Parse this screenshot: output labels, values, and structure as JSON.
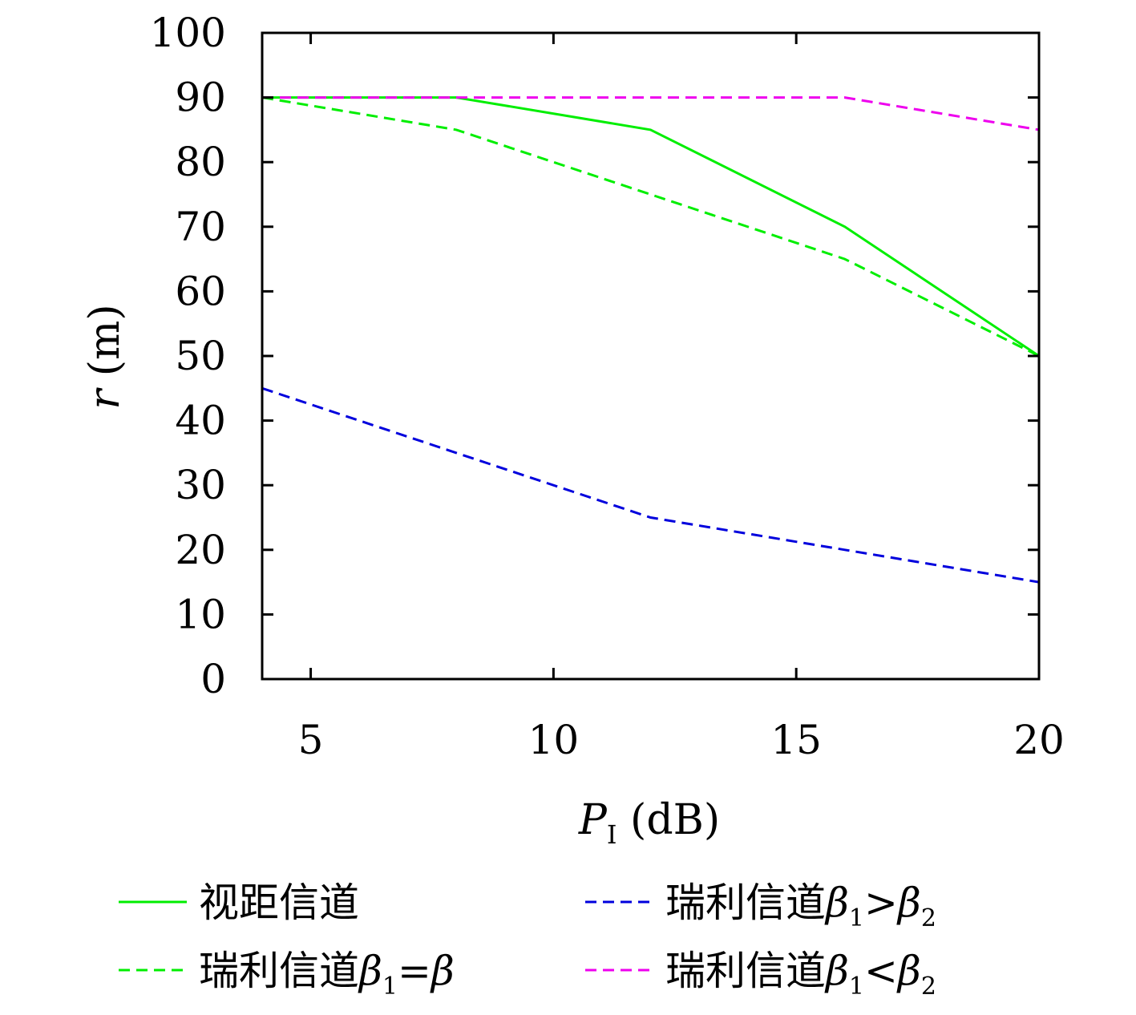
{
  "chart_data": {
    "type": "line",
    "title": "",
    "xlabel": {
      "main": "P",
      "sub": "I",
      "unit": "(dB)"
    },
    "ylabel": {
      "main": "r",
      "unit": "(m)"
    },
    "xlim": [
      4,
      20
    ],
    "ylim": [
      0,
      100
    ],
    "xticks": [
      5,
      10,
      15,
      20
    ],
    "yticks": [
      0,
      10,
      20,
      30,
      40,
      50,
      60,
      70,
      80,
      90,
      100
    ],
    "grid": false,
    "legend_placement": "bottom",
    "x": [
      4,
      8,
      12,
      16,
      20
    ],
    "series": [
      {
        "name": "los",
        "legend": {
          "prefix": "视距信道"
        },
        "color": "#00ee00",
        "dash": "solid",
        "values": [
          90,
          90,
          85,
          70,
          50
        ]
      },
      {
        "name": "rayleigh-eq",
        "legend": {
          "prefix": "瑞利信道",
          "b": "β",
          "s": "1",
          "op": "=",
          "b2": "β",
          "s2": ""
        },
        "color": "#00ee00",
        "dash": "dashed",
        "values": [
          90,
          85,
          75,
          65,
          50
        ]
      },
      {
        "name": "rayleigh-gt",
        "legend": {
          "prefix": "瑞利信道",
          "b": "β",
          "s": "1",
          "op": ">",
          "b2": "β",
          "s2": "2"
        },
        "color": "#0000dd",
        "dash": "dashed",
        "values": [
          45,
          35,
          25,
          20,
          15
        ]
      },
      {
        "name": "rayleigh-lt",
        "legend": {
          "prefix": "瑞利信道",
          "b": "β",
          "s": "1",
          "op": "<",
          "b2": "β",
          "s2": "2"
        },
        "color": "#ee00ee",
        "dash": "dashed",
        "values": [
          90,
          90,
          90,
          90,
          85
        ]
      }
    ]
  }
}
